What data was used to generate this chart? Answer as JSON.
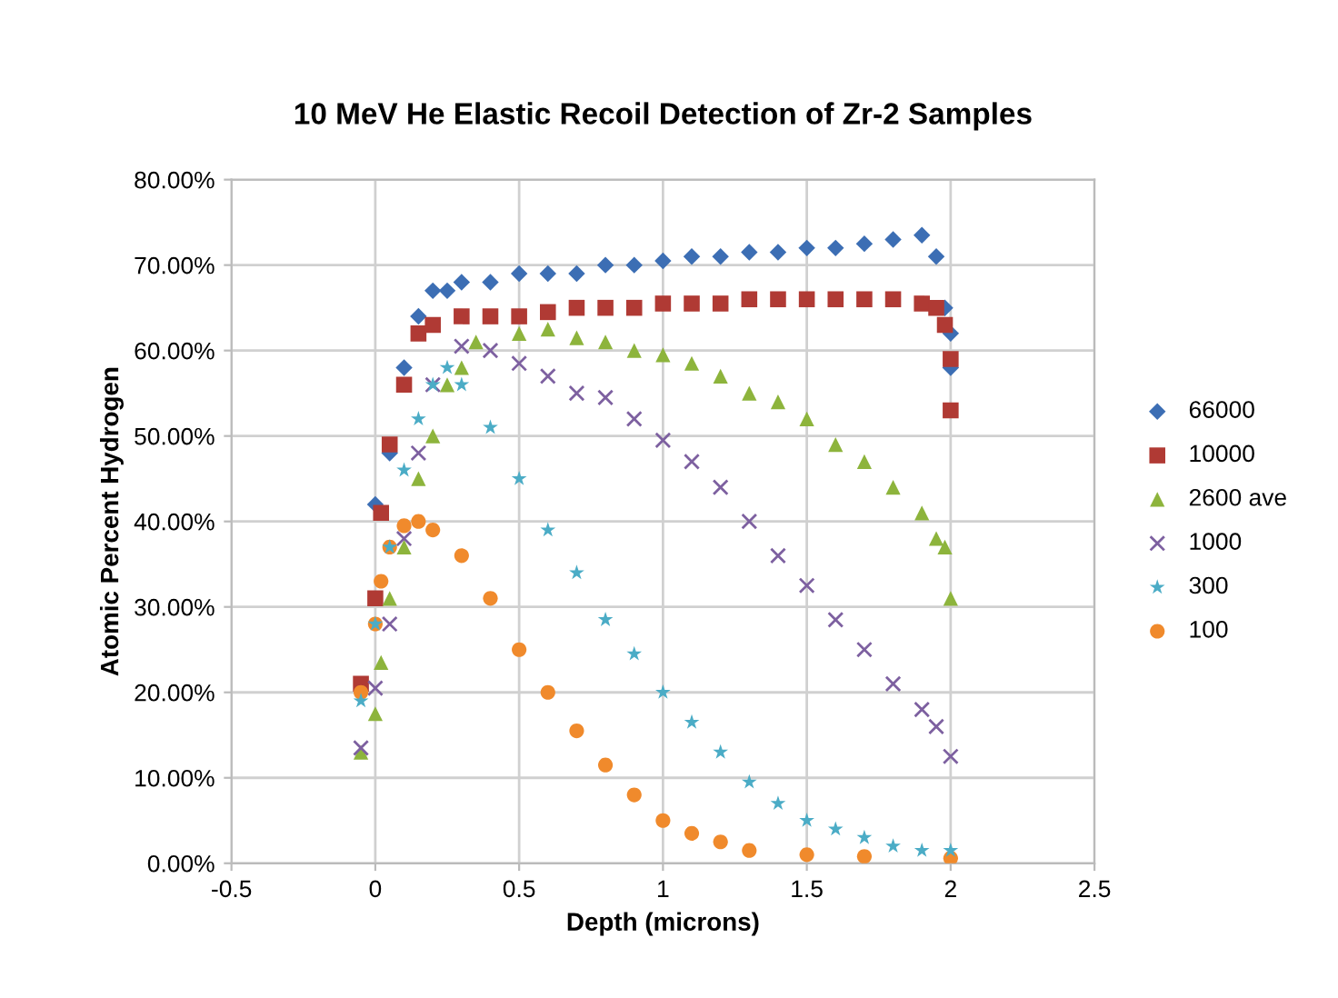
{
  "chart_data": {
    "type": "scatter",
    "title": "10 MeV He Elastic Recoil Detection of Zr-2 Samples",
    "xlabel": "Depth (microns)",
    "ylabel": "Atomic Percent Hydrogen",
    "xlim": [
      -0.5,
      2.5
    ],
    "xticks": [
      -0.5,
      0,
      0.5,
      1,
      1.5,
      2,
      2.5
    ],
    "ylim": [
      0,
      80
    ],
    "yticks": [
      {
        "value": 0,
        "label": "0.00%"
      },
      {
        "value": 10,
        "label": "10.00%"
      },
      {
        "value": 20,
        "label": "20.00%"
      },
      {
        "value": 30,
        "label": "30.00%"
      },
      {
        "value": 40,
        "label": "40.00%"
      },
      {
        "value": 50,
        "label": "50.00%"
      },
      {
        "value": 60,
        "label": "60.00%"
      },
      {
        "value": 70,
        "label": "70.00%"
      },
      {
        "value": 80,
        "label": "80.00%"
      }
    ],
    "grid": true,
    "legend": "right",
    "series": [
      {
        "name": "66000",
        "color": "#3c6eb4",
        "marker": "diamond",
        "x": [
          0,
          0.05,
          0.1,
          0.15,
          0.2,
          0.25,
          0.3,
          0.4,
          0.5,
          0.6,
          0.7,
          0.8,
          0.9,
          1.0,
          1.1,
          1.2,
          1.3,
          1.4,
          1.5,
          1.6,
          1.7,
          1.8,
          1.9,
          1.95,
          1.98,
          2.0,
          2.0
        ],
        "values": [
          42,
          48,
          58,
          64,
          67,
          67,
          68,
          68,
          69,
          69,
          69,
          70,
          70,
          70.5,
          71,
          71,
          71.5,
          71.5,
          72,
          72,
          72.5,
          73,
          73.5,
          71,
          65,
          62,
          58
        ]
      },
      {
        "name": "10000",
        "color": "#b03a34",
        "marker": "square",
        "x": [
          -0.05,
          0,
          0.02,
          0.05,
          0.1,
          0.15,
          0.2,
          0.3,
          0.4,
          0.5,
          0.6,
          0.7,
          0.8,
          0.9,
          1.0,
          1.1,
          1.2,
          1.3,
          1.4,
          1.5,
          1.6,
          1.7,
          1.8,
          1.9,
          1.95,
          1.98,
          2.0,
          2.0
        ],
        "values": [
          21,
          31,
          41,
          49,
          56,
          62,
          63,
          64,
          64,
          64,
          64.5,
          65,
          65,
          65,
          65.5,
          65.5,
          65.5,
          66,
          66,
          66,
          66,
          66,
          66,
          65.5,
          65,
          63,
          59,
          53
        ]
      },
      {
        "name": "2600 ave",
        "color": "#8db43c",
        "marker": "triangle",
        "x": [
          -0.05,
          0,
          0.02,
          0.05,
          0.1,
          0.15,
          0.2,
          0.25,
          0.3,
          0.35,
          0.5,
          0.6,
          0.7,
          0.8,
          0.9,
          1.0,
          1.1,
          1.2,
          1.3,
          1.4,
          1.5,
          1.6,
          1.7,
          1.8,
          1.9,
          1.95,
          1.98,
          2.0
        ],
        "values": [
          13,
          17.5,
          23.5,
          31,
          37,
          45,
          50,
          56,
          58,
          61,
          62,
          62.5,
          61.5,
          61,
          60,
          59.5,
          58.5,
          57,
          55,
          54,
          52,
          49,
          47,
          44,
          41,
          38,
          37,
          31
        ]
      },
      {
        "name": "1000",
        "color": "#7d60a0",
        "marker": "cross",
        "x": [
          -0.05,
          0,
          0.05,
          0.1,
          0.15,
          0.2,
          0.3,
          0.4,
          0.5,
          0.6,
          0.7,
          0.8,
          0.9,
          1.0,
          1.1,
          1.2,
          1.3,
          1.4,
          1.5,
          1.6,
          1.7,
          1.8,
          1.9,
          1.95,
          2.0
        ],
        "values": [
          13.5,
          20.5,
          28,
          38,
          48,
          56,
          60.5,
          60,
          58.5,
          57,
          55,
          54.5,
          52,
          49.5,
          47,
          44,
          40,
          36,
          32.5,
          28.5,
          25,
          21,
          18,
          16,
          12.5
        ]
      },
      {
        "name": "300",
        "color": "#4bacc6",
        "marker": "star",
        "x": [
          -0.05,
          0,
          0.05,
          0.1,
          0.15,
          0.2,
          0.25,
          0.3,
          0.4,
          0.5,
          0.6,
          0.7,
          0.8,
          0.9,
          1.0,
          1.1,
          1.2,
          1.3,
          1.4,
          1.5,
          1.6,
          1.7,
          1.8,
          1.9,
          2.0
        ],
        "values": [
          19,
          28,
          37,
          46,
          52,
          56,
          58,
          56,
          51,
          45,
          39,
          34,
          28.5,
          24.5,
          20,
          16.5,
          13,
          9.5,
          7,
          5,
          4,
          3,
          2,
          1.5,
          1.5
        ]
      },
      {
        "name": "100",
        "color": "#f08a2c",
        "marker": "circle",
        "x": [
          -0.05,
          0,
          0.02,
          0.05,
          0.1,
          0.15,
          0.2,
          0.3,
          0.4,
          0.5,
          0.6,
          0.7,
          0.8,
          0.9,
          1.0,
          1.1,
          1.2,
          1.3,
          1.5,
          1.7,
          2.0
        ],
        "values": [
          20,
          28,
          33,
          37,
          39.5,
          40,
          39,
          36,
          31,
          25,
          20,
          15.5,
          11.5,
          8,
          5,
          3.5,
          2.5,
          1.5,
          1,
          0.8,
          0.6
        ]
      }
    ]
  }
}
